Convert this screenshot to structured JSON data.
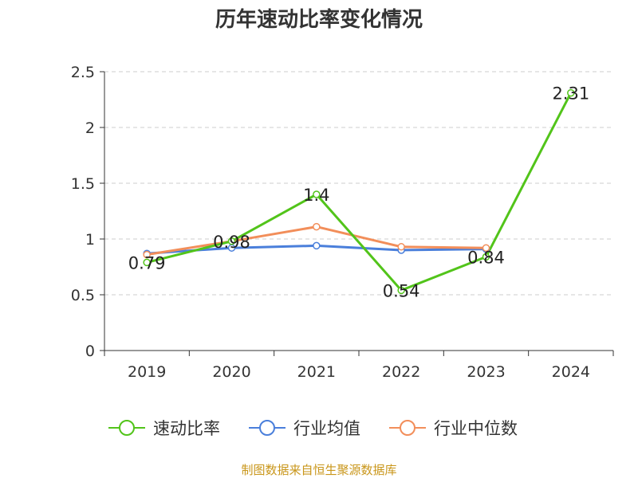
{
  "chart_data": {
    "type": "line",
    "title": "历年速动比率变化情况",
    "categories": [
      "2019",
      "2020",
      "2021",
      "2022",
      "2023",
      "2024"
    ],
    "ylim": [
      0,
      2.5
    ],
    "yticks": [
      "0",
      "0.5",
      "1",
      "1.5",
      "2",
      "2.5"
    ],
    "grid": true,
    "legend_position": "bottom",
    "series": [
      {
        "name": "速动比率",
        "color": "#52c41a",
        "values": [
          0.79,
          0.98,
          1.4,
          0.54,
          0.84,
          2.31
        ],
        "labels": [
          "0.79",
          "0.98",
          "1.4",
          "0.54",
          "0.84",
          "2.31"
        ]
      },
      {
        "name": "行业均值",
        "color": "#4a7fdb",
        "values": [
          0.87,
          0.92,
          0.94,
          0.9,
          0.91,
          null
        ]
      },
      {
        "name": "行业中位数",
        "color": "#f28e5a",
        "values": [
          0.86,
          0.98,
          1.11,
          0.93,
          0.92,
          null
        ]
      }
    ]
  },
  "source": "制图数据来自恒生聚源数据库"
}
